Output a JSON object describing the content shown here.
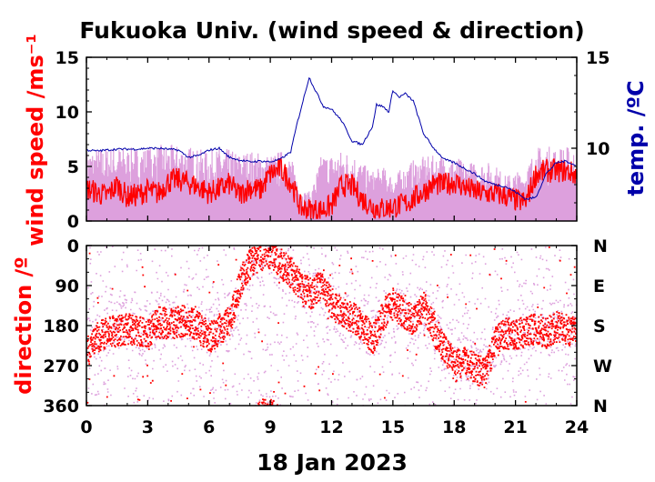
{
  "chart_data": [
    {
      "type": "line",
      "title": "Fukuoka Univ. (wind speed & direction)",
      "ylabel": "wind speed /ms⁻¹",
      "y2label": "temp. /ºC",
      "xlim": [
        0,
        24
      ],
      "ylim": [
        0,
        15
      ],
      "y2lim": [
        6,
        15
      ],
      "xticks": [
        0,
        3,
        6,
        9,
        12,
        15,
        18,
        21,
        24
      ],
      "yticks": [
        0,
        5,
        10,
        15
      ],
      "y2ticks": [
        10,
        15
      ],
      "colors": {
        "wind_mean": "#ff0000",
        "wind_gust": "#dda0dd",
        "temperature": "#0000aa"
      },
      "series": [
        {
          "key": "wind_mean",
          "x": [
            0,
            0.5,
            1,
            1.5,
            2,
            2.5,
            3,
            3.5,
            4,
            4.5,
            5,
            5.5,
            6,
            6.5,
            7,
            7.5,
            8,
            8.5,
            9,
            9.5,
            10,
            10.5,
            11,
            11.5,
            12,
            12.5,
            13,
            13.5,
            14,
            14.5,
            15,
            15.5,
            16,
            16.5,
            17,
            17.5,
            18,
            18.5,
            19,
            19.5,
            20,
            20.5,
            21,
            21.5,
            22,
            22.5,
            23,
            23.5,
            24
          ],
          "values": [
            3,
            2.6,
            2.3,
            3.3,
            2.2,
            2.4,
            2.8,
            2.5,
            3.6,
            3.8,
            3.5,
            3.1,
            2.6,
            2.9,
            3.4,
            2.4,
            3.1,
            2.8,
            4.3,
            4.8,
            3.6,
            1.2,
            1,
            1,
            1.4,
            3.3,
            3.2,
            2,
            1.3,
            1.1,
            1.3,
            1.5,
            2,
            2.7,
            3.4,
            3.3,
            3.6,
            3.1,
            2.7,
            2.5,
            2.5,
            2.3,
            1.9,
            1.7,
            4.3,
            4.6,
            4.6,
            4.6,
            4.2
          ]
        },
        {
          "key": "wind_gust",
          "x": [
            0,
            0.5,
            1,
            1.5,
            2,
            2.5,
            3,
            3.5,
            4,
            4.5,
            5,
            5.5,
            6,
            6.5,
            7,
            7.5,
            8,
            8.5,
            9,
            9.5,
            10,
            10.5,
            11,
            11.5,
            12,
            12.5,
            13,
            13.5,
            14,
            14.5,
            15,
            15.5,
            16,
            16.5,
            17,
            17.5,
            18,
            18.5,
            19,
            19.5,
            20,
            20.5,
            21,
            21.5,
            22,
            22.5,
            23,
            23.5,
            24
          ],
          "values": [
            6.5,
            6.7,
            6.8,
            6.9,
            6.7,
            6.8,
            6.8,
            7,
            7,
            7,
            6.9,
            6.6,
            6.4,
            6.7,
            6.6,
            6.3,
            6.5,
            6.3,
            6.1,
            6.5,
            6,
            2.8,
            2.7,
            6.1,
            6.2,
            6.5,
            6.4,
            5.3,
            4.6,
            5,
            4.2,
            4.9,
            5.6,
            5.9,
            6,
            6.1,
            6,
            5.5,
            5.4,
            5.5,
            5.2,
            4.2,
            4.5,
            4.8,
            6.8,
            6.9,
            6.8,
            6.9,
            6.5
          ]
        },
        {
          "key": "temperature",
          "axis": "y2",
          "x": [
            0,
            0.5,
            1,
            1.5,
            2,
            2.5,
            3,
            3.5,
            4,
            4.5,
            5,
            5.5,
            6,
            6.5,
            7,
            7.5,
            8,
            8.5,
            9,
            9.5,
            10,
            10.3,
            10.6,
            10.9,
            11.2,
            11.6,
            12,
            12.5,
            13,
            13.5,
            14,
            14.2,
            14.5,
            14.8,
            15,
            15.3,
            15.6,
            16,
            16.5,
            17,
            17.5,
            18,
            18.5,
            19,
            19.5,
            20,
            20.5,
            21,
            21.5,
            22,
            22.5,
            23,
            23.5,
            24
          ],
          "values": [
            9.9,
            9.85,
            9.9,
            9.95,
            9.95,
            9.95,
            10,
            10,
            9.95,
            9.9,
            9.5,
            9.6,
            9.9,
            10,
            9.5,
            9.35,
            9.25,
            9.3,
            9.25,
            9.4,
            9.8,
            11.3,
            12.6,
            13.9,
            13.2,
            12.3,
            12.15,
            11.5,
            10.4,
            10.2,
            11.2,
            12.4,
            12.3,
            12.0,
            13.2,
            12.8,
            13.0,
            12.6,
            10.8,
            10.0,
            9.4,
            9.2,
            8.9,
            8.6,
            8.2,
            8.0,
            7.9,
            7.6,
            7.2,
            7.3,
            8.6,
            9.2,
            9.3,
            9.0
          ]
        }
      ]
    },
    {
      "type": "scatter",
      "ylabel": "direction /º",
      "xlabel": "18 Jan 2023",
      "xlim": [
        0,
        24
      ],
      "ylim": [
        360,
        0
      ],
      "xticks": [
        0,
        3,
        6,
        9,
        12,
        15,
        18,
        21,
        24
      ],
      "yticks": [
        0,
        90,
        180,
        270,
        360
      ],
      "y2ticklabels": [
        "N",
        "E",
        "S",
        "W",
        "N"
      ],
      "colors": {
        "mean_direction": "#ff0000",
        "instant_direction": "#dda0dd"
      },
      "series": [
        {
          "key": "mean_direction",
          "x": [
            0,
            0.5,
            1,
            1.5,
            2,
            2.5,
            3,
            3.5,
            4,
            4.5,
            5,
            5.5,
            6,
            6.5,
            7,
            7.5,
            8,
            8.5,
            9,
            9.5,
            10,
            10.5,
            11,
            11.5,
            12,
            12.5,
            13,
            13.5,
            14,
            14.5,
            15,
            15.5,
            16,
            16.5,
            17,
            17.5,
            18,
            18.5,
            19,
            19.5,
            20,
            20.5,
            21,
            21.5,
            22,
            22.5,
            23,
            23.5,
            24
          ],
          "values": [
            240,
            205,
            195,
            190,
            185,
            190,
            200,
            170,
            175,
            170,
            165,
            185,
            205,
            185,
            170,
            80,
            40,
            20,
            15,
            40,
            60,
            90,
            110,
            80,
            130,
            150,
            160,
            180,
            210,
            155,
            130,
            150,
            170,
            135,
            190,
            230,
            270,
            260,
            275,
            285,
            215,
            195,
            200,
            190,
            185,
            195,
            180,
            190,
            195
          ]
        },
        {
          "key": "instant_direction",
          "x": [
            0,
            0.5,
            1,
            1.5,
            2,
            2.5,
            3,
            3.5,
            4,
            4.5,
            5,
            5.5,
            6,
            6.5,
            7,
            7.5,
            8,
            8.5,
            9,
            9.5,
            10,
            10.5,
            11,
            11.5,
            12,
            12.5,
            13,
            13.5,
            14,
            14.5,
            15,
            15.5,
            16,
            16.5,
            17,
            17.5,
            18,
            18.5,
            19,
            19.5,
            20,
            20.5,
            21,
            21.5,
            22,
            22.5,
            23,
            23.5,
            24
          ],
          "values": [
            220,
            200,
            180,
            185,
            175,
            190,
            180,
            165,
            170,
            175,
            160,
            180,
            190,
            170,
            160,
            120,
            60,
            30,
            10,
            50,
            70,
            95,
            120,
            100,
            140,
            155,
            170,
            175,
            190,
            160,
            140,
            150,
            160,
            150,
            185,
            220,
            250,
            250,
            260,
            270,
            220,
            200,
            190,
            185,
            180,
            190,
            175,
            185,
            190
          ]
        }
      ]
    }
  ]
}
